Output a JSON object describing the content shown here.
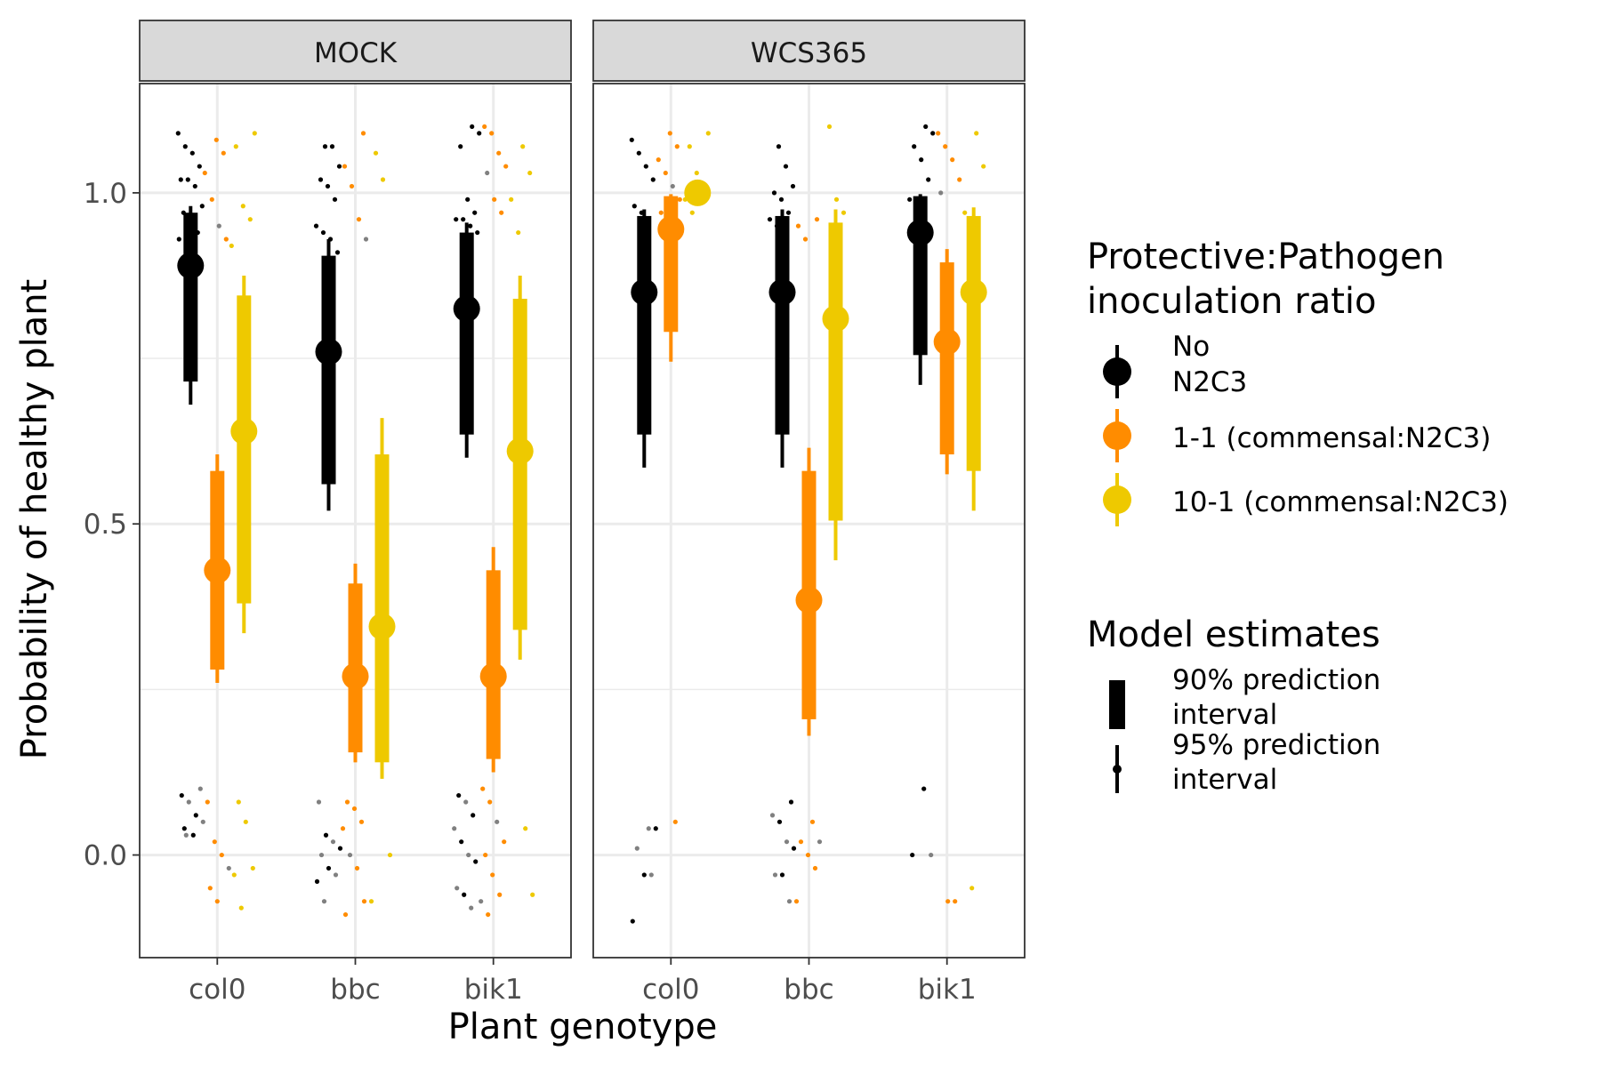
{
  "chart_data": {
    "type": "pointrange-interval",
    "xlabel": "Plant genotype",
    "ylabel": "Probability of healthy plant",
    "ylim": [
      -0.155,
      1.165
    ],
    "y_ticks": [
      {
        "value": 0.0,
        "label": "0.0"
      },
      {
        "value": 0.5,
        "label": "0.5"
      },
      {
        "value": 1.0,
        "label": "1.0"
      }
    ],
    "y_minor_ticks": [
      0.25,
      0.75
    ],
    "grid": true,
    "categories": [
      "col0",
      "bbc",
      "bik1"
    ],
    "panels": [
      {
        "title": "MOCK",
        "groups": [
          {
            "genotype": "col0",
            "ratio": "No N2C3",
            "estimate": 0.89,
            "i90": [
              0.715,
              0.97
            ],
            "i95": [
              0.68,
              0.98
            ]
          },
          {
            "genotype": "col0",
            "ratio": "1-1",
            "estimate": 0.43,
            "i90": [
              0.28,
              0.58
            ],
            "i95": [
              0.26,
              0.605
            ]
          },
          {
            "genotype": "col0",
            "ratio": "10-1",
            "estimate": 0.64,
            "i90": [
              0.38,
              0.845
            ],
            "i95": [
              0.335,
              0.875
            ]
          },
          {
            "genotype": "bbc",
            "ratio": "No N2C3",
            "estimate": 0.76,
            "i90": [
              0.56,
              0.905
            ],
            "i95": [
              0.52,
              0.93
            ]
          },
          {
            "genotype": "bbc",
            "ratio": "1-1",
            "estimate": 0.27,
            "i90": [
              0.155,
              0.41
            ],
            "i95": [
              0.14,
              0.44
            ]
          },
          {
            "genotype": "bbc",
            "ratio": "10-1",
            "estimate": 0.345,
            "i90": [
              0.14,
              0.605
            ],
            "i95": [
              0.115,
              0.66
            ]
          },
          {
            "genotype": "bik1",
            "ratio": "No N2C3",
            "estimate": 0.825,
            "i90": [
              0.635,
              0.94
            ],
            "i95": [
              0.6,
              0.955
            ]
          },
          {
            "genotype": "bik1",
            "ratio": "1-1",
            "estimate": 0.27,
            "i90": [
              0.145,
              0.43
            ],
            "i95": [
              0.125,
              0.465
            ]
          },
          {
            "genotype": "bik1",
            "ratio": "10-1",
            "estimate": 0.61,
            "i90": [
              0.34,
              0.84
            ],
            "i95": [
              0.295,
              0.875
            ]
          }
        ]
      },
      {
        "title": "WCS365",
        "groups": [
          {
            "genotype": "col0",
            "ratio": "No N2C3",
            "estimate": 0.85,
            "i90": [
              0.635,
              0.965
            ],
            "i95": [
              0.585,
              0.975
            ]
          },
          {
            "genotype": "col0",
            "ratio": "1-1",
            "estimate": 0.945,
            "i90": [
              0.79,
              0.995
            ],
            "i95": [
              0.745,
              0.998
            ]
          },
          {
            "genotype": "col0",
            "ratio": "10-1",
            "estimate": 1.0,
            "i90": [
              0.995,
              1.0
            ],
            "i95": [
              0.99,
              1.0
            ]
          },
          {
            "genotype": "bbc",
            "ratio": "No N2C3",
            "estimate": 0.85,
            "i90": [
              0.635,
              0.965
            ],
            "i95": [
              0.585,
              0.975
            ]
          },
          {
            "genotype": "bbc",
            "ratio": "1-1",
            "estimate": 0.385,
            "i90": [
              0.205,
              0.58
            ],
            "i95": [
              0.18,
              0.615
            ]
          },
          {
            "genotype": "bbc",
            "ratio": "10-1",
            "estimate": 0.81,
            "i90": [
              0.505,
              0.955
            ],
            "i95": [
              0.445,
              0.975
            ]
          },
          {
            "genotype": "bik1",
            "ratio": "No N2C3",
            "estimate": 0.94,
            "i90": [
              0.755,
              0.995
            ],
            "i95": [
              0.71,
              0.998
            ]
          },
          {
            "genotype": "bik1",
            "ratio": "1-1",
            "estimate": 0.775,
            "i90": [
              0.605,
              0.895
            ],
            "i95": [
              0.575,
              0.915
            ]
          },
          {
            "genotype": "bik1",
            "ratio": "10-1",
            "estimate": 0.85,
            "i90": [
              0.58,
              0.965
            ],
            "i95": [
              0.52,
              0.978
            ]
          }
        ]
      }
    ],
    "raw_points": [
      {
        "panel": 0,
        "genotype": "col0",
        "ratio": "No N2C3",
        "top": [
          1.09,
          1.07,
          1.06,
          1.04,
          1.02,
          1.02,
          1.01,
          0.98,
          0.97,
          0.96,
          0.94,
          0.93
        ],
        "bottom": [
          0.03,
          0.03,
          0.1,
          0.09,
          0.08,
          0.06,
          0.05,
          0.04
        ]
      },
      {
        "panel": 0,
        "genotype": "col0",
        "ratio": "1-1",
        "top": [
          1.08,
          1.06,
          1.03,
          0.99,
          0.95,
          0.93
        ],
        "bottom": [
          0.08,
          0.02,
          0.0,
          -0.02,
          -0.05,
          -0.07
        ]
      },
      {
        "panel": 0,
        "genotype": "col0",
        "ratio": "10-1",
        "top": [
          1.09,
          1.07,
          0.98,
          0.96,
          0.92
        ],
        "bottom": [
          0.08,
          0.05,
          -0.02,
          -0.03,
          -0.08
        ]
      },
      {
        "panel": 0,
        "genotype": "bbc",
        "ratio": "No N2C3",
        "top": [
          1.07,
          1.07,
          1.04,
          1.02,
          1.01,
          0.99,
          0.95,
          0.94,
          0.93,
          0.91
        ],
        "bottom": [
          0.08,
          0.03,
          0.02,
          0.01,
          0.0,
          -0.02,
          -0.03,
          -0.04,
          -0.07
        ]
      },
      {
        "panel": 0,
        "genotype": "bbc",
        "ratio": "1-1",
        "top": [
          1.09,
          1.04,
          1.01,
          0.96,
          0.93
        ],
        "bottom": [
          0.08,
          0.07,
          0.05,
          0.04,
          0.0,
          -0.02,
          -0.07,
          -0.09
        ]
      },
      {
        "panel": 0,
        "genotype": "bbc",
        "ratio": "10-1",
        "top": [
          1.06,
          1.02
        ],
        "bottom": [
          0.0,
          -0.07
        ]
      },
      {
        "panel": 0,
        "genotype": "bik1",
        "ratio": "No N2C3",
        "top": [
          1.1,
          1.09,
          1.07,
          0.99,
          0.97,
          0.96,
          0.96,
          0.95,
          0.94
        ],
        "bottom": [
          0.09,
          0.08,
          0.06,
          0.04,
          0.02,
          0.0,
          -0.01,
          -0.05,
          -0.06,
          -0.08
        ]
      },
      {
        "panel": 0,
        "genotype": "bik1",
        "ratio": "1-1",
        "top": [
          1.1,
          1.09,
          1.06,
          1.04,
          1.03,
          0.99,
          0.97
        ],
        "bottom": [
          0.1,
          0.08,
          0.05,
          0.02,
          0.0,
          -0.03,
          -0.06,
          -0.07,
          -0.09
        ]
      },
      {
        "panel": 0,
        "genotype": "bik1",
        "ratio": "10-1",
        "top": [
          1.07,
          1.03,
          0.99,
          0.94
        ],
        "bottom": [
          0.04,
          -0.06
        ]
      },
      {
        "panel": 1,
        "genotype": "col0",
        "ratio": "No N2C3",
        "top": [
          1.08,
          1.06,
          1.04,
          1.02,
          0.98,
          0.97
        ],
        "bottom": [
          0.04,
          0.04,
          0.01,
          -0.03,
          -0.03,
          -0.1
        ]
      },
      {
        "panel": 1,
        "genotype": "col0",
        "ratio": "1-1",
        "top": [
          1.09,
          1.07,
          1.05,
          1.03,
          1.01,
          0.99,
          0.97,
          0.95
        ],
        "bottom": [
          0.05
        ]
      },
      {
        "panel": 1,
        "genotype": "col0",
        "ratio": "10-1",
        "top": [
          1.09,
          1.07,
          1.03,
          1.01,
          0.99,
          0.97
        ],
        "bottom": []
      },
      {
        "panel": 1,
        "genotype": "bbc",
        "ratio": "No N2C3",
        "top": [
          1.07,
          1.04,
          1.01,
          1.0,
          0.99,
          0.97,
          0.96,
          0.95,
          0.94
        ],
        "bottom": [
          0.08,
          0.06,
          0.05,
          0.02,
          0.01,
          -0.03,
          -0.03,
          -0.07
        ]
      },
      {
        "panel": 1,
        "genotype": "bbc",
        "ratio": "1-1",
        "top": [
          0.96,
          0.95,
          0.93
        ],
        "bottom": [
          0.05,
          0.02,
          0.02,
          0.0,
          -0.02,
          -0.07
        ]
      },
      {
        "panel": 1,
        "genotype": "bbc",
        "ratio": "10-1",
        "top": [
          1.1,
          0.99,
          0.97
        ],
        "bottom": []
      },
      {
        "panel": 1,
        "genotype": "bik1",
        "ratio": "No N2C3",
        "top": [
          1.1,
          1.09,
          1.07,
          1.05,
          1.02,
          0.99,
          0.98
        ],
        "bottom": [
          0.1,
          0.0,
          0.0
        ]
      },
      {
        "panel": 1,
        "genotype": "bik1",
        "ratio": "1-1",
        "top": [
          1.09,
          1.07,
          1.05,
          1.02,
          1.0
        ],
        "bottom": [
          -0.07,
          -0.07
        ]
      },
      {
        "panel": 1,
        "genotype": "bik1",
        "ratio": "10-1",
        "top": [
          1.09,
          1.04,
          0.97
        ],
        "bottom": [
          -0.05
        ]
      }
    ]
  },
  "colors": {
    "No N2C3": "#000000",
    "1-1": "#ff8c00",
    "10-1": "#eec900",
    "raw_alt": "#808080",
    "strip_fill": "#d9d9d9",
    "grid": "#ebebeb"
  },
  "legend": {
    "ratio_title_line1": "Protective:Pathogen",
    "ratio_title_line2": "inoculation ratio",
    "ratio_items": [
      {
        "key": "No N2C3",
        "label_lines": [
          "No",
          "N2C3"
        ]
      },
      {
        "key": "1-1",
        "label_lines": [
          "1-1 (commensal:N2C3)"
        ]
      },
      {
        "key": "10-1",
        "label_lines": [
          "10-1 (commensal:N2C3)"
        ]
      }
    ],
    "model_title": "Model estimates",
    "model_items": [
      {
        "kind": "thick",
        "label_lines": [
          "90% prediction",
          "interval"
        ]
      },
      {
        "kind": "thin",
        "label_lines": [
          "95% prediction",
          "interval"
        ]
      }
    ]
  }
}
